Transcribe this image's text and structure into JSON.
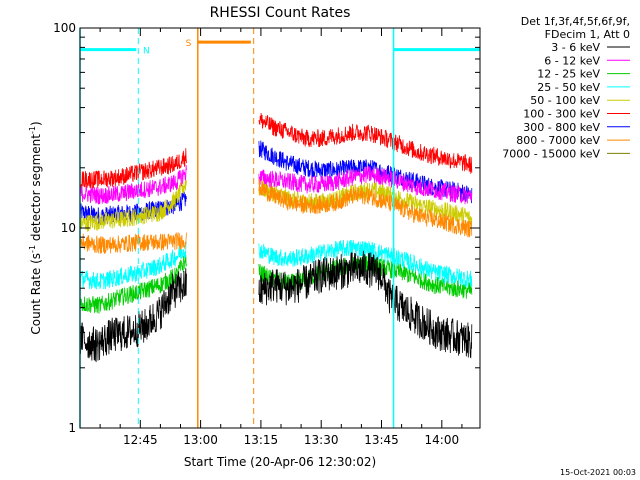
{
  "chart_data": {
    "type": "line",
    "title": "RHESSI Count Rates",
    "xlabel": "Start Time (20-Apr-06 12:30:02)",
    "ylabel_main": "Count Rate (s",
    "ylabel_sup1": "-1",
    "ylabel_mid": " detector segment",
    "ylabel_sup2": "-1",
    "ylabel_end": ")",
    "yscale": "log",
    "ylim": [
      1,
      100
    ],
    "xlim_minutes": [
      30,
      129.5
    ],
    "y_ticks": [
      {
        "value": 1,
        "label": "1"
      },
      {
        "value": 10,
        "label": "10"
      },
      {
        "value": 100,
        "label": "100"
      }
    ],
    "x_ticks": [
      {
        "minute": 45,
        "label": "12:45"
      },
      {
        "minute": 60,
        "label": "13:00"
      },
      {
        "minute": 75,
        "label": "13:15"
      },
      {
        "minute": 90,
        "label": "13:30"
      },
      {
        "minute": 105,
        "label": "13:45"
      },
      {
        "minute": 120,
        "label": "14:00"
      }
    ],
    "legend_header": [
      "Det 1f,3f,4f,5f,6f,9f,",
      "FDecim 1, Att 0"
    ],
    "legend_placement": "right",
    "series": [
      {
        "name": "3 - 6 keV",
        "color": "#000000",
        "segments": [
          {
            "x": [
              30,
              34,
              38,
              42,
              46,
              50,
              53,
              56.5
            ],
            "y": [
              2.8,
              2.6,
              2.9,
              3.0,
              3.2,
              3.8,
              4.8,
              5.2
            ]
          },
          {
            "x": [
              74.5,
              78,
              82,
              86,
              90,
              94,
              98,
              101,
              104,
              105,
              107,
              110,
              113,
              116,
              119,
              122,
              125,
              127.5
            ],
            "y": [
              4.8,
              5.2,
              5.0,
              5.3,
              5.8,
              6.0,
              6.2,
              6.3,
              6.0,
              5.8,
              4.5,
              4.0,
              3.6,
              3.3,
              3.0,
              2.9,
              2.8,
              2.7
            ]
          }
        ]
      },
      {
        "name": "6 - 12 keV",
        "color": "#ff00ff",
        "segments": [
          {
            "x": [
              30,
              35,
              40,
              45,
              50,
              54,
              56.5
            ],
            "y": [
              15,
              14.5,
              14.8,
              15.5,
              16,
              17,
              19
            ]
          },
          {
            "x": [
              74.5,
              78,
              82,
              86,
              90,
              94,
              98,
              102,
              106,
              110,
              114,
              118,
              122,
              126,
              127.5
            ],
            "y": [
              18,
              17.5,
              17,
              16.5,
              16.5,
              17,
              18,
              18.5,
              18,
              17,
              16,
              15.5,
              15,
              14.5,
              14.5
            ]
          }
        ]
      },
      {
        "name": "12 - 25 keV",
        "color": "#00cc00",
        "segments": [
          {
            "x": [
              30,
              35,
              40,
              45,
              50,
              54,
              56.5
            ],
            "y": [
              4.2,
              4.1,
              4.5,
              4.8,
              5.2,
              5.8,
              7.0
            ]
          },
          {
            "x": [
              74.5,
              78,
              82,
              86,
              90,
              94,
              98,
              102,
              106,
              110,
              114,
              118,
              122,
              126,
              127.5
            ],
            "y": [
              6.0,
              5.5,
              5.3,
              5.5,
              6.0,
              6.3,
              6.5,
              6.6,
              6.3,
              6.0,
              5.6,
              5.2,
              5.0,
              4.9,
              4.8
            ]
          }
        ]
      },
      {
        "name": "25 - 50 keV",
        "color": "#00ffff",
        "segments": [
          {
            "x": [
              30,
              35,
              40,
              45,
              50,
              54,
              56.5
            ],
            "y": [
              5.6,
              5.4,
              5.7,
              6.0,
              6.5,
              7.2,
              8.0
            ]
          },
          {
            "x": [
              74.5,
              78,
              82,
              86,
              90,
              94,
              98,
              102,
              106,
              110,
              114,
              118,
              122,
              126,
              127.5
            ],
            "y": [
              7.8,
              7.2,
              7.0,
              7.2,
              7.5,
              7.8,
              8.0,
              7.8,
              7.4,
              7.0,
              6.5,
              6.0,
              5.8,
              5.6,
              5.5
            ]
          }
        ]
      },
      {
        "name": "50 - 100 keV",
        "color": "#cccc00",
        "segments": [
          {
            "x": [
              30,
              35,
              40,
              45,
              50,
              54,
              56.5
            ],
            "y": [
              10.5,
              10.8,
              11,
              11.5,
              12,
              14,
              17
            ]
          },
          {
            "x": [
              74.5,
              78,
              82,
              86,
              90,
              94,
              98,
              102,
              106,
              110,
              114,
              118,
              122,
              126,
              127.5
            ],
            "y": [
              16,
              15,
              14,
              13.5,
              13.5,
              14,
              15,
              15.5,
              15,
              14,
              13,
              12.5,
              12,
              11.5,
              11
            ]
          }
        ]
      },
      {
        "name": "100 - 300 keV",
        "color": "#ff0000",
        "segments": [
          {
            "x": [
              30,
              35,
              40,
              45,
              50,
              54,
              56.5
            ],
            "y": [
              17.5,
              17.5,
              18,
              19,
              20,
              21,
              23
            ]
          },
          {
            "x": [
              74.5,
              78,
              82,
              86,
              90,
              94,
              98,
              102,
              106,
              110,
              114,
              118,
              122,
              126,
              127.5
            ],
            "y": [
              35,
              32,
              30,
              28,
              28,
              29,
              30,
              30,
              28,
              26,
              24,
              23,
              22,
              21,
              20.5
            ]
          }
        ]
      },
      {
        "name": "300 - 800 keV",
        "color": "#0000ff",
        "segments": [
          {
            "x": [
              30,
              35,
              40,
              45,
              50,
              54,
              56.5
            ],
            "y": [
              12,
              11.5,
              11.8,
              12,
              12.5,
              13,
              14
            ]
          },
          {
            "x": [
              74.5,
              78,
              82,
              86,
              90,
              94,
              98,
              102,
              106,
              110,
              114,
              118,
              122,
              126,
              127.5
            ],
            "y": [
              25,
              23,
              21,
              20,
              19.5,
              19.5,
              20,
              20,
              19,
              18,
              17,
              16,
              15.5,
              15,
              14.5
            ]
          }
        ]
      },
      {
        "name": "800 - 7000 keV",
        "color": "#ff8800",
        "segments": [
          {
            "x": [
              30,
              35,
              40,
              45,
              50,
              54,
              56.5
            ],
            "y": [
              8.5,
              8.2,
              8.3,
              8.5,
              8.5,
              8.6,
              8.7
            ]
          },
          {
            "x": [
              74.5,
              78,
              82,
              86,
              90,
              94,
              98,
              102,
              106,
              110,
              114,
              118,
              122,
              126,
              127.5
            ],
            "y": [
              16,
              14.5,
              13.5,
              13,
              13,
              13.5,
              14.5,
              14.5,
              13.5,
              12.5,
              11.5,
              11,
              10.5,
              10,
              9.8
            ]
          }
        ]
      },
      {
        "name": "7000 - 15000 keV",
        "color": "#808000",
        "segments": []
      }
    ],
    "intervals": [
      {
        "label": "N",
        "color": "#00ffff",
        "level": 78,
        "bar_minutes": [
          30,
          44
        ],
        "dashed_minute": 44.5,
        "label_minute": 46.5
      },
      {
        "label": "S",
        "color": "#ff8800",
        "level": 85,
        "solid_minute": 59.3,
        "bar_minutes": [
          59.3,
          72.5
        ],
        "dashed_minute": 73.2,
        "label_minute": 57.0
      },
      {
        "label": "",
        "color": "#00ffff",
        "level": 78,
        "solid_minute": 108,
        "bar_minutes": [
          108,
          129.5
        ],
        "dashed_minute": 129.5
      }
    ],
    "timestamp": "15-Oct-2021 00:03"
  }
}
